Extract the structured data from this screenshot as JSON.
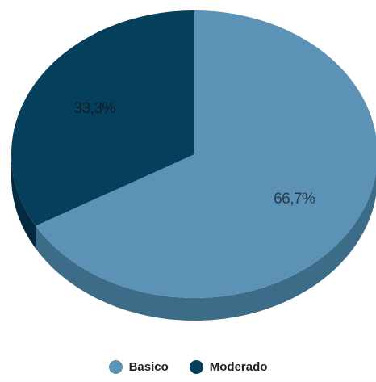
{
  "chart_data": {
    "type": "pie",
    "categories": [
      "Basico",
      "Moderado"
    ],
    "values": [
      66.7,
      33.3
    ],
    "data_labels": [
      "66,7%",
      "33,3%"
    ],
    "colors": [
      "#5b92b5",
      "#053f5c"
    ],
    "side_colors": [
      "#3d6c88",
      "#032a3f"
    ],
    "label_colors": [
      "#2a3d4a",
      "#0e1e28"
    ],
    "style": "3d",
    "legend": {
      "position": "bottom"
    }
  }
}
